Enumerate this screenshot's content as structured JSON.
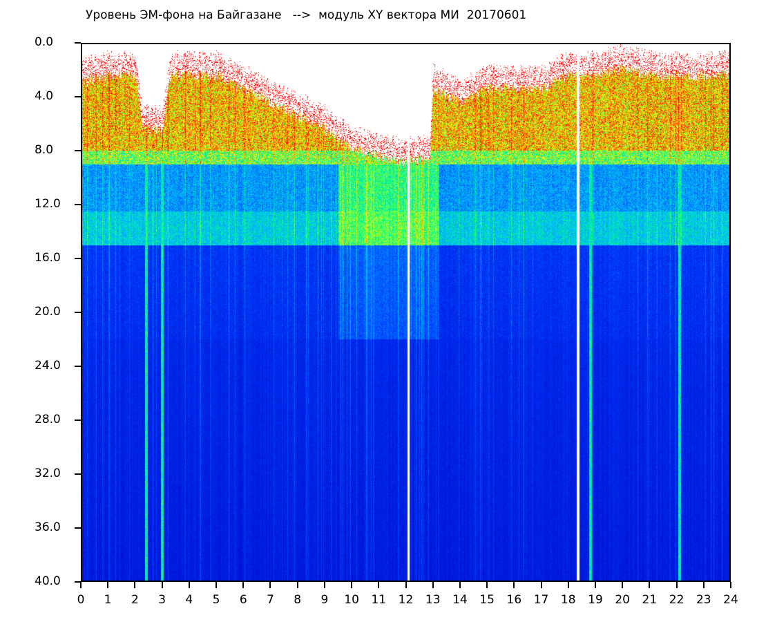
{
  "chart_data": {
    "type": "heatmap",
    "title": "Уровень ЭМ-фона на Байгазане   -->  модуль XY вектора МИ  20170601",
    "xlabel": "",
    "ylabel": "",
    "xlim": [
      0,
      24
    ],
    "ylim": [
      40,
      0
    ],
    "x_ticks": [
      "0",
      "1",
      "2",
      "3",
      "4",
      "5",
      "6",
      "7",
      "8",
      "9",
      "10",
      "11",
      "12",
      "13",
      "14",
      "15",
      "16",
      "17",
      "18",
      "19",
      "20",
      "21",
      "22",
      "23",
      "24"
    ],
    "y_ticks": [
      "0.0",
      "4.0",
      "8.0",
      "12.0",
      "16.0",
      "20.0",
      "24.0",
      "28.0",
      "32.0",
      "36.0",
      "40.0"
    ],
    "colormap": [
      "#0000c8",
      "#0040ff",
      "#00c0ff",
      "#00ff80",
      "#ffff00",
      "#ff0000"
    ],
    "signal_top_by_hour": {
      "x": [
        0,
        1,
        2,
        2.3,
        3,
        3.3,
        4,
        5,
        6,
        7,
        8,
        9,
        10,
        11,
        12,
        12.9,
        13,
        14,
        15,
        16,
        17,
        18,
        19,
        20,
        21,
        22,
        22.3,
        23,
        24
      ],
      "y": [
        2.5,
        2,
        2,
        6,
        6,
        2,
        2,
        2,
        3,
        4,
        5,
        6,
        7.5,
        8,
        8.5,
        8,
        3,
        4,
        3,
        3,
        3,
        2,
        2,
        1.5,
        2,
        2,
        2,
        2,
        2
      ]
    },
    "white_gaps_hours": [
      12.1,
      18.35
    ],
    "bright_lines_hours": [
      2.4,
      3.0,
      18.8,
      22.1
    ]
  }
}
